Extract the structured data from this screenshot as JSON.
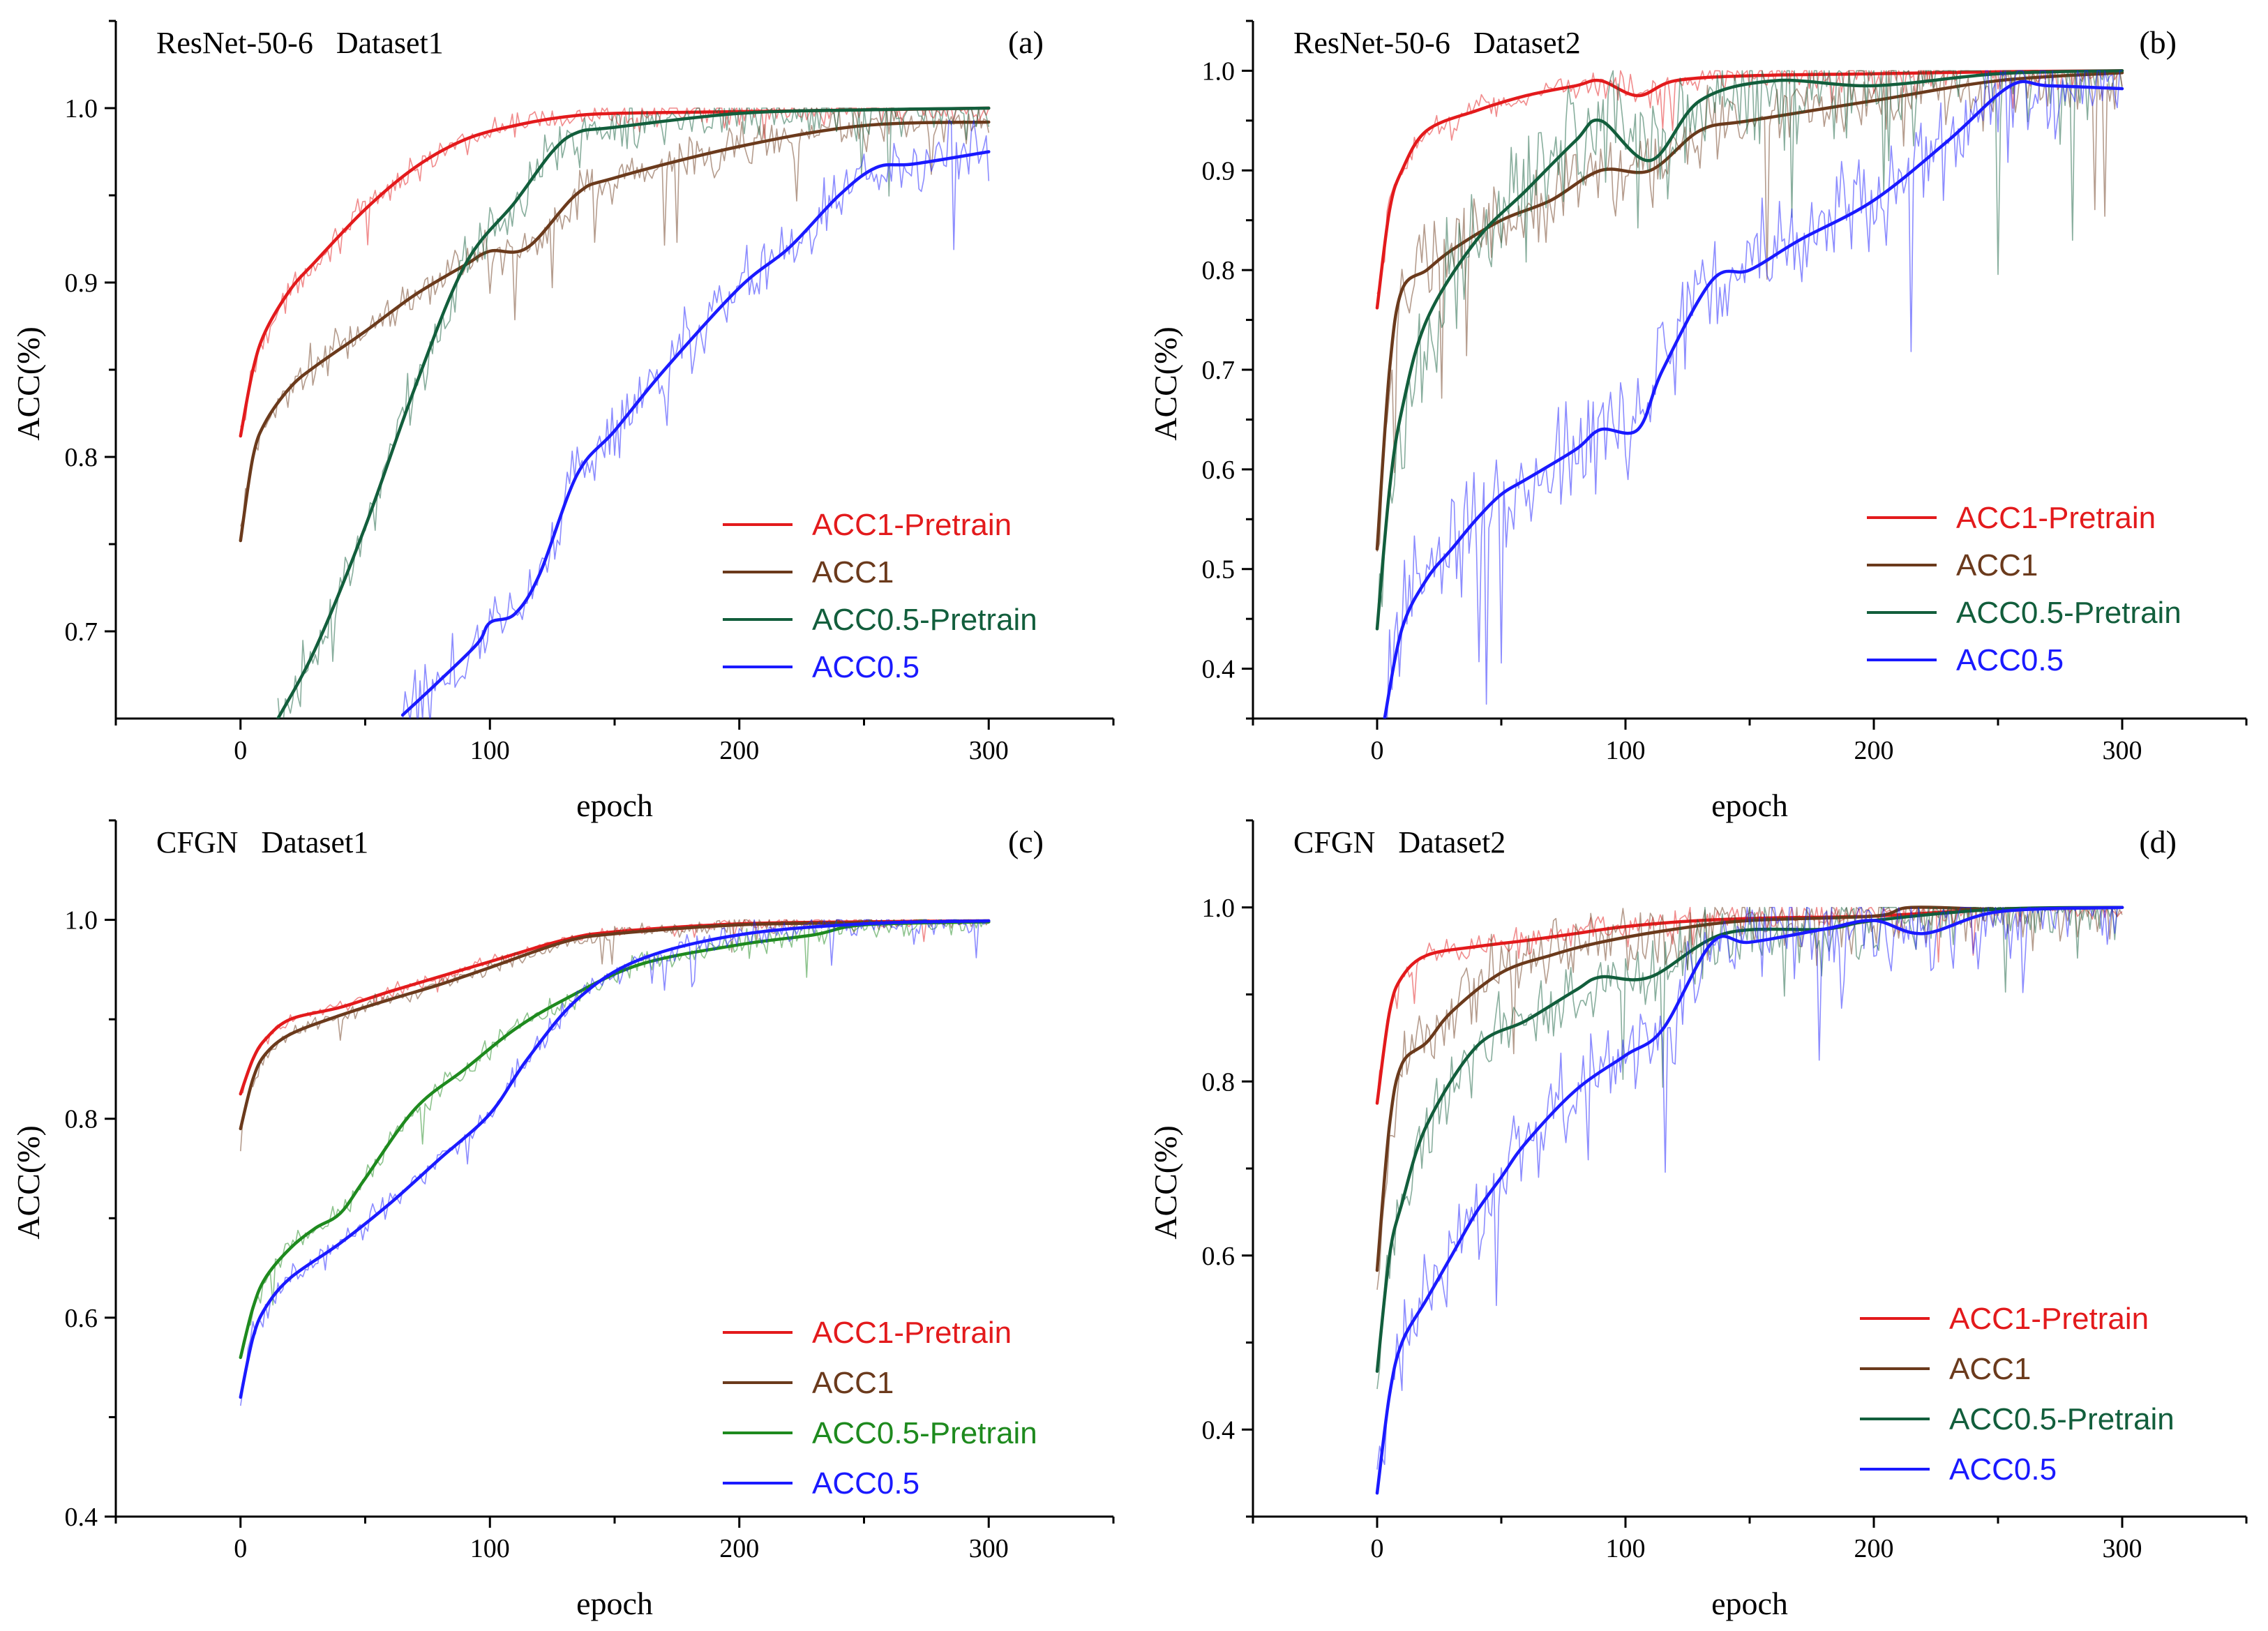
{
  "colors": {
    "acc1_pretrain": "#e31a1c",
    "acc1": "#6b3a1c",
    "acc05_pretrain": "#125e3c",
    "acc05_pretrain_c": "#1e8a1e",
    "acc05": "#1a1aff"
  },
  "chart_data": [
    {
      "id": "a",
      "type": "line",
      "title": "ResNet-50-6   Dataset1",
      "letter": "(a)",
      "xlabel": "epoch",
      "ylabel": "ACC(%)",
      "xlim": [
        -50,
        350
      ],
      "ylim": [
        0.65,
        1.05
      ],
      "xticks": [
        0,
        100,
        200,
        300
      ],
      "xtick_labels": [
        "0",
        "100",
        "200",
        "300"
      ],
      "yticks": [
        0.7,
        0.8,
        0.9,
        1.0
      ],
      "ytick_labels": [
        "0.7",
        "0.8",
        "0.9",
        "1.0"
      ],
      "legend_position": "bottom-right",
      "series": [
        {
          "name": "ACC1-Pretrain",
          "color": "#e31a1c",
          "noise": 0.004,
          "x": [
            0,
            5,
            10,
            20,
            30,
            50,
            70,
            90,
            110,
            130,
            150,
            200,
            250,
            300
          ],
          "values": [
            0.812,
            0.85,
            0.872,
            0.896,
            0.912,
            0.942,
            0.966,
            0.982,
            0.99,
            0.995,
            0.997,
            0.998,
            0.999,
            1.0
          ]
        },
        {
          "name": "ACC1",
          "color": "#6b3a1c",
          "noise": 0.006,
          "x": [
            0,
            5,
            10,
            20,
            30,
            50,
            70,
            90,
            100,
            115,
            135,
            150,
            200,
            250,
            300
          ],
          "values": [
            0.752,
            0.8,
            0.82,
            0.84,
            0.852,
            0.872,
            0.893,
            0.91,
            0.918,
            0.92,
            0.951,
            0.96,
            0.978,
            0.99,
            0.992
          ]
        },
        {
          "name": "ACC0.5-Pretrain",
          "color": "#125e3c",
          "noise": 0.008,
          "x": [
            15,
            30,
            50,
            70,
            90,
            110,
            125,
            135,
            150,
            200,
            250,
            300
          ],
          "values": [
            0.65,
            0.69,
            0.76,
            0.84,
            0.91,
            0.946,
            0.975,
            0.986,
            0.989,
            0.997,
            0.999,
            1.0
          ]
        },
        {
          "name": "ACC0.5",
          "color": "#1a1aff",
          "noise": 0.009,
          "x": [
            65,
            80,
            95,
            100,
            110,
            120,
            135,
            150,
            170,
            200,
            220,
            240,
            255,
            270,
            300
          ],
          "values": [
            0.652,
            0.672,
            0.693,
            0.705,
            0.71,
            0.733,
            0.79,
            0.815,
            0.85,
            0.897,
            0.92,
            0.95,
            0.966,
            0.968,
            0.975
          ]
        }
      ]
    },
    {
      "id": "b",
      "type": "line",
      "title": "ResNet-50-6   Dataset2",
      "letter": "(b)",
      "xlabel": "epoch",
      "ylabel": "ACC(%)",
      "xlim": [
        -50,
        350
      ],
      "ylim": [
        0.35,
        1.05
      ],
      "xticks": [
        0,
        100,
        200,
        300
      ],
      "xtick_labels": [
        "0",
        "100",
        "200",
        "300"
      ],
      "yticks": [
        0.4,
        0.5,
        0.6,
        0.7,
        0.8,
        0.9,
        1.0
      ],
      "ytick_labels": [
        "0.4",
        "0.5",
        "0.6",
        "0.7",
        "0.8",
        "0.9",
        "1.0"
      ],
      "legend_position": "bottom-right",
      "series": [
        {
          "name": "ACC1-Pretrain",
          "color": "#e31a1c",
          "noise": 0.008,
          "x": [
            0,
            5,
            10,
            20,
            40,
            60,
            80,
            90,
            105,
            120,
            150,
            200,
            250,
            300
          ],
          "values": [
            0.762,
            0.86,
            0.9,
            0.94,
            0.96,
            0.975,
            0.985,
            0.99,
            0.975,
            0.99,
            0.995,
            0.997,
            0.999,
            1.0
          ]
        },
        {
          "name": "ACC1",
          "color": "#6b3a1c",
          "noise": 0.02,
          "x": [
            0,
            5,
            10,
            20,
            30,
            50,
            70,
            90,
            110,
            130,
            150,
            200,
            250,
            300
          ],
          "values": [
            0.52,
            0.7,
            0.78,
            0.8,
            0.82,
            0.85,
            0.87,
            0.9,
            0.9,
            0.94,
            0.95,
            0.97,
            0.99,
            0.998
          ]
        },
        {
          "name": "ACC0.5-Pretrain",
          "color": "#125e3c",
          "noise": 0.03,
          "x": [
            0,
            5,
            10,
            20,
            40,
            60,
            80,
            90,
            110,
            130,
            160,
            200,
            250,
            300
          ],
          "values": [
            0.44,
            0.58,
            0.66,
            0.75,
            0.83,
            0.88,
            0.93,
            0.95,
            0.91,
            0.97,
            0.99,
            0.985,
            0.997,
            1.0
          ]
        },
        {
          "name": "ACC0.5",
          "color": "#1a1aff",
          "noise": 0.03,
          "x": [
            3,
            10,
            20,
            30,
            40,
            50,
            60,
            80,
            90,
            105,
            115,
            135,
            150,
            170,
            200,
            230,
            255,
            270,
            300
          ],
          "values": [
            0.35,
            0.44,
            0.49,
            0.52,
            0.55,
            0.575,
            0.59,
            0.62,
            0.64,
            0.64,
            0.7,
            0.79,
            0.8,
            0.83,
            0.87,
            0.93,
            0.985,
            0.985,
            0.982
          ]
        }
      ]
    },
    {
      "id": "c",
      "type": "line",
      "title": "CFGN   Dataset1",
      "letter": "(c)",
      "xlabel": "epoch",
      "ylabel": "ACC(%)",
      "xlim": [
        -50,
        350
      ],
      "ylim": [
        0.4,
        1.1
      ],
      "xticks": [
        0,
        100,
        200,
        300
      ],
      "xtick_labels": [
        "0",
        "100",
        "200",
        "300"
      ],
      "yticks": [
        0.4,
        0.6,
        0.8,
        1.0
      ],
      "ytick_labels": [
        "0.4",
        "0.6",
        "0.8",
        "1.0"
      ],
      "legend_position": "bottom-right",
      "series": [
        {
          "name": "ACC1-Pretrain",
          "color": "#e31a1c",
          "noise": 0.003,
          "x": [
            0,
            5,
            10,
            20,
            40,
            60,
            80,
            100,
            130,
            150,
            200,
            250,
            300
          ],
          "values": [
            0.825,
            0.86,
            0.88,
            0.9,
            0.912,
            0.928,
            0.943,
            0.958,
            0.98,
            0.988,
            0.996,
            0.998,
            0.999
          ]
        },
        {
          "name": "ACC1",
          "color": "#6b3a1c",
          "noise": 0.004,
          "x": [
            0,
            5,
            10,
            20,
            40,
            60,
            80,
            100,
            130,
            150,
            200,
            250,
            300
          ],
          "values": [
            0.79,
            0.84,
            0.865,
            0.885,
            0.904,
            0.92,
            0.935,
            0.952,
            0.978,
            0.986,
            0.995,
            0.997,
            0.998
          ]
        },
        {
          "name": "ACC0.5-Pretrain",
          "color": "#1e8a1e",
          "noise": 0.006,
          "x": [
            0,
            5,
            10,
            20,
            30,
            40,
            50,
            70,
            90,
            110,
            130,
            160,
            200,
            230,
            250,
            300
          ],
          "values": [
            0.56,
            0.61,
            0.64,
            0.67,
            0.69,
            0.705,
            0.74,
            0.81,
            0.85,
            0.89,
            0.92,
            0.955,
            0.975,
            0.985,
            0.995,
            0.998
          ]
        },
        {
          "name": "ACC0.5",
          "color": "#1a1aff",
          "noise": 0.006,
          "x": [
            0,
            5,
            10,
            20,
            40,
            60,
            80,
            100,
            115,
            135,
            160,
            200,
            250,
            300
          ],
          "values": [
            0.52,
            0.58,
            0.61,
            0.64,
            0.675,
            0.715,
            0.76,
            0.805,
            0.86,
            0.92,
            0.96,
            0.985,
            0.996,
            0.999
          ]
        }
      ]
    },
    {
      "id": "d",
      "type": "line",
      "title": "CFGN   Dataset2",
      "letter": "(d)",
      "xlabel": "epoch",
      "ylabel": "ACC(%)",
      "xlim": [
        -50,
        350
      ],
      "ylim": [
        0.3,
        1.1
      ],
      "xticks": [
        0,
        100,
        200,
        300
      ],
      "xtick_labels": [
        "0",
        "100",
        "200",
        "300"
      ],
      "yticks": [
        0.4,
        0.6,
        0.8,
        1.0
      ],
      "ytick_labels": [
        "0.4",
        "0.6",
        "0.8",
        "1.0"
      ],
      "legend_position": "bottom-right",
      "series": [
        {
          "name": "ACC1-Pretrain",
          "color": "#e31a1c",
          "noise": 0.008,
          "x": [
            0,
            5,
            10,
            20,
            40,
            60,
            80,
            100,
            130,
            160,
            200,
            250,
            300
          ],
          "values": [
            0.775,
            0.88,
            0.92,
            0.945,
            0.955,
            0.962,
            0.97,
            0.978,
            0.985,
            0.988,
            0.99,
            0.998,
            1.0
          ]
        },
        {
          "name": "ACC1",
          "color": "#6b3a1c",
          "noise": 0.02,
          "x": [
            0,
            5,
            10,
            20,
            30,
            50,
            70,
            90,
            120,
            150,
            200,
            215,
            250,
            300
          ],
          "values": [
            0.583,
            0.75,
            0.82,
            0.845,
            0.88,
            0.925,
            0.945,
            0.96,
            0.975,
            0.985,
            0.99,
            1.0,
            0.998,
            1.0
          ]
        },
        {
          "name": "ACC0.5-Pretrain",
          "color": "#125e3c",
          "noise": 0.02,
          "x": [
            0,
            5,
            10,
            20,
            40,
            60,
            80,
            90,
            110,
            140,
            180,
            200,
            250,
            300
          ],
          "values": [
            0.467,
            0.6,
            0.66,
            0.75,
            0.84,
            0.87,
            0.905,
            0.92,
            0.92,
            0.97,
            0.975,
            0.985,
            0.998,
            1.0
          ]
        },
        {
          "name": "ACC0.5",
          "color": "#1a1aff",
          "noise": 0.025,
          "x": [
            0,
            5,
            10,
            20,
            30,
            40,
            50,
            60,
            80,
            100,
            115,
            135,
            150,
            180,
            200,
            220,
            250,
            300
          ],
          "values": [
            0.327,
            0.44,
            0.5,
            0.55,
            0.6,
            0.65,
            0.69,
            0.73,
            0.79,
            0.83,
            0.86,
            0.96,
            0.96,
            0.975,
            0.985,
            0.97,
            0.995,
            1.0
          ]
        }
      ]
    }
  ]
}
